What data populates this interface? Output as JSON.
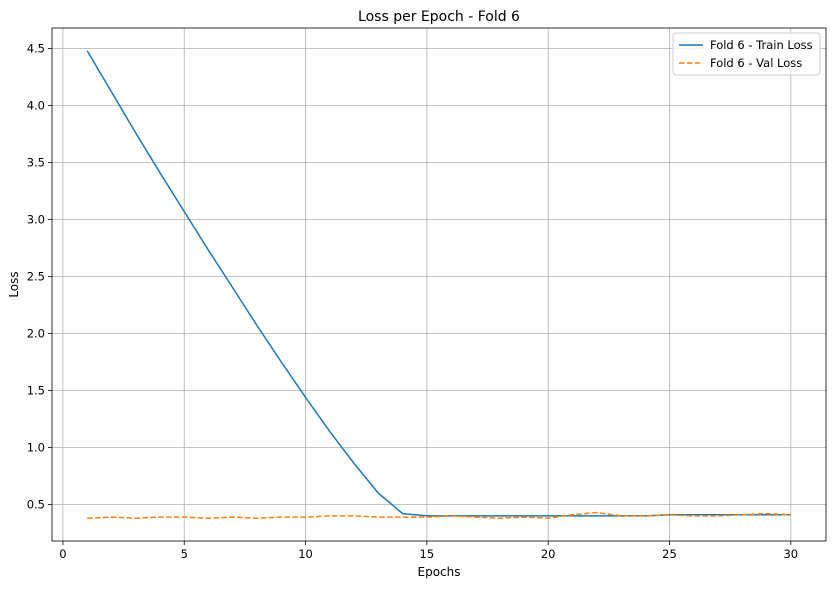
{
  "chart_data": {
    "type": "line",
    "title": "Loss per Epoch - Fold 6",
    "xlabel": "Epochs",
    "ylabel": "Loss",
    "xlim": [
      -0.45,
      31.45
    ],
    "ylim": [
      0.18,
      4.68
    ],
    "xticks": [
      0,
      5,
      10,
      15,
      20,
      25,
      30
    ],
    "yticks": [
      0.5,
      1.0,
      1.5,
      2.0,
      2.5,
      3.0,
      3.5,
      4.0,
      4.5
    ],
    "grid": true,
    "legend_position": "top-right",
    "x": [
      1,
      2,
      3,
      4,
      5,
      6,
      7,
      8,
      9,
      10,
      11,
      12,
      13,
      14,
      15,
      16,
      17,
      18,
      19,
      20,
      21,
      22,
      23,
      24,
      25,
      26,
      27,
      28,
      29,
      30
    ],
    "series": [
      {
        "name": "Fold 6 - Train Loss",
        "color": "#1f77b4",
        "dash": "solid",
        "values": [
          4.48,
          4.12,
          3.76,
          3.41,
          3.07,
          2.73,
          2.4,
          2.07,
          1.75,
          1.44,
          1.14,
          0.86,
          0.6,
          0.42,
          0.4,
          0.4,
          0.4,
          0.4,
          0.4,
          0.4,
          0.4,
          0.4,
          0.4,
          0.4,
          0.41,
          0.41,
          0.41,
          0.41,
          0.41,
          0.41
        ]
      },
      {
        "name": "Fold 6 - Val Loss",
        "color": "#ff7f0e",
        "dash": "dashed",
        "values": [
          0.38,
          0.39,
          0.38,
          0.39,
          0.39,
          0.38,
          0.39,
          0.38,
          0.39,
          0.39,
          0.4,
          0.4,
          0.39,
          0.39,
          0.39,
          0.4,
          0.39,
          0.38,
          0.39,
          0.38,
          0.41,
          0.43,
          0.4,
          0.4,
          0.41,
          0.4,
          0.4,
          0.41,
          0.42,
          0.41
        ]
      }
    ]
  }
}
